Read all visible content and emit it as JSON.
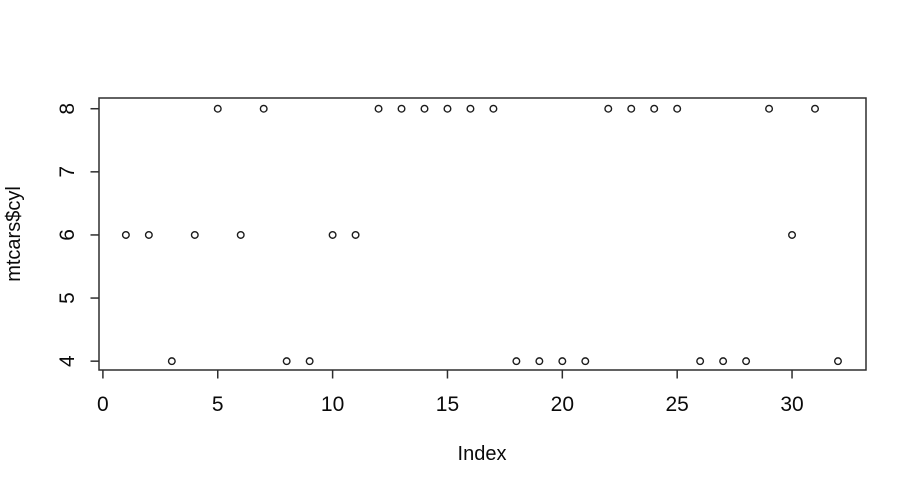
{
  "figure": {
    "background": "#ffffff"
  },
  "chart_data": {
    "type": "scatter",
    "title": "",
    "xlabel": "Index",
    "ylabel": "mtcars$cyl",
    "x": [
      1,
      2,
      3,
      4,
      5,
      6,
      7,
      8,
      9,
      10,
      11,
      12,
      13,
      14,
      15,
      16,
      17,
      18,
      19,
      20,
      21,
      22,
      23,
      24,
      25,
      26,
      27,
      28,
      29,
      30,
      31,
      32
    ],
    "y": [
      6,
      6,
      4,
      6,
      8,
      6,
      8,
      4,
      4,
      6,
      6,
      8,
      8,
      8,
      8,
      8,
      8,
      4,
      4,
      4,
      4,
      8,
      8,
      8,
      8,
      4,
      4,
      4,
      8,
      6,
      8,
      4
    ],
    "xticks": [
      0,
      5,
      10,
      15,
      20,
      25,
      30
    ],
    "yticks": [
      4,
      5,
      6,
      7,
      8
    ],
    "xlim": [
      -0.17,
      33.22
    ],
    "ylim": [
      3.86,
      8.17
    ],
    "grid": false,
    "legend": null,
    "marker": "open-circle",
    "colors": {
      "axis": "#2e2e2e",
      "text": "#0a0a0a",
      "marker": "#1c1c1c",
      "background": "#ffffff"
    }
  }
}
